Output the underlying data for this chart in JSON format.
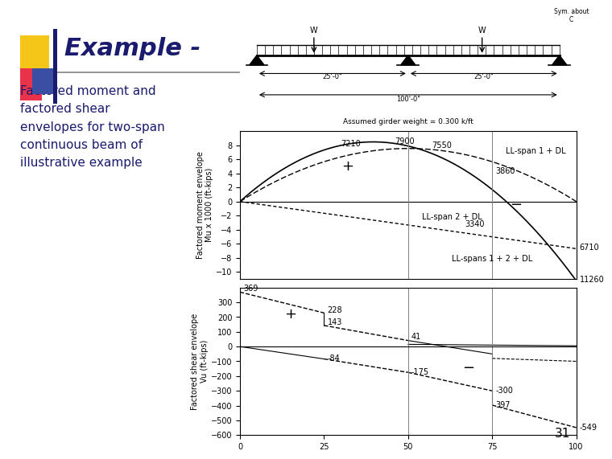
{
  "bg_color": "#ffffff",
  "slide_title": "Example -",
  "slide_text": "Factored moment and\nfactored shear\nenvelopes for two-span\ncontinuous beam of\nillustrative example",
  "page_number": "31",
  "moment_ylim": [
    -11,
    10
  ],
  "moment_yticks": [
    -10,
    -8,
    -6,
    -4,
    -2,
    0,
    2,
    4,
    6,
    8
  ],
  "moment_ylabel": "Factored moment envelope\nMu x 1000 (ft-kips)",
  "moment_xlim": [
    0,
    100
  ],
  "shear_ylim": [
    -600,
    400
  ],
  "shear_yticks": [
    -600,
    -500,
    -400,
    -300,
    -200,
    -100,
    0,
    100,
    200,
    300
  ],
  "shear_ylabel": "Factored shear envelope\nVu (ft-kips)",
  "shear_xlim": [
    0,
    100
  ],
  "shear_xticks": [
    0,
    25,
    50,
    75,
    100
  ],
  "assumed_girder": "Assumed girder weight = 0.300 k/ft",
  "accent_yellow": "#f5c518",
  "accent_red": "#e8334a",
  "accent_blue": "#3a4fa3",
  "accent_darkblue": "#1a1a6e"
}
